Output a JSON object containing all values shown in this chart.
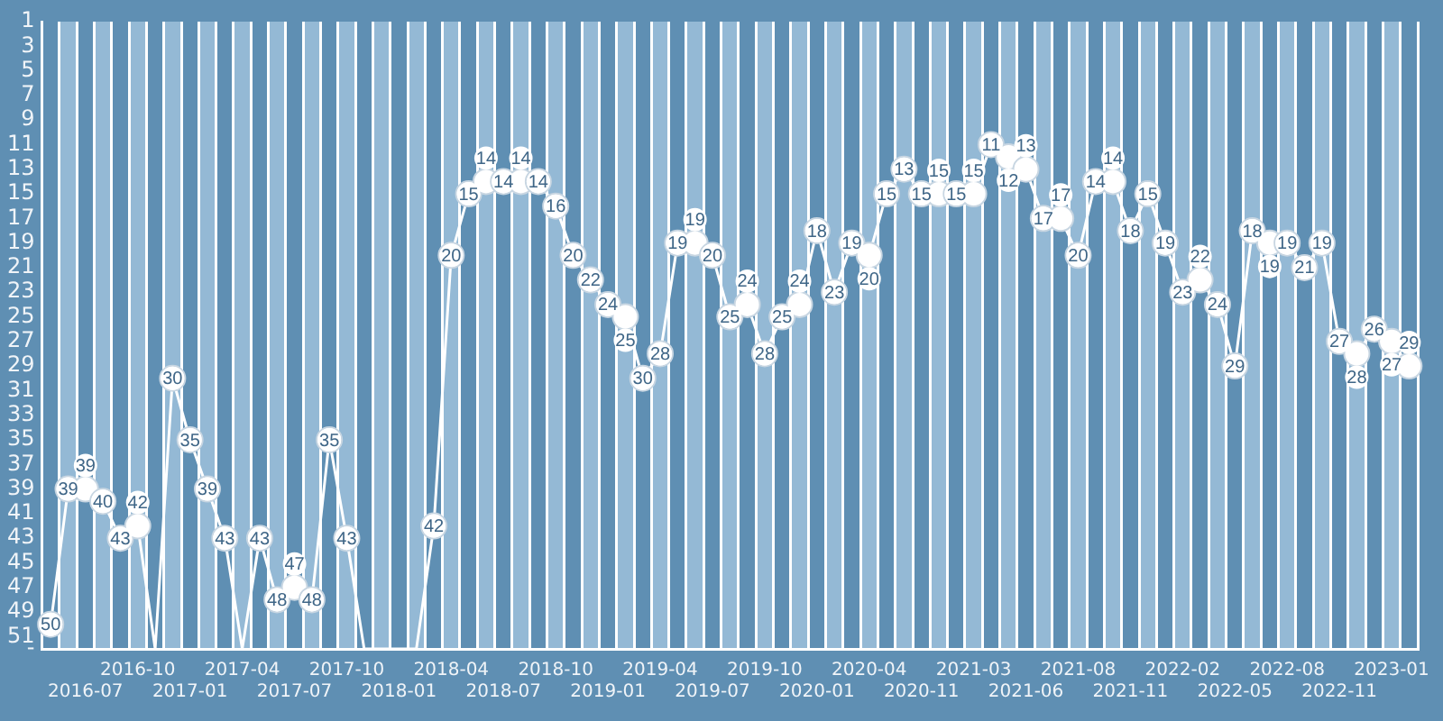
{
  "chart_data": {
    "type": "line",
    "categories": [
      null,
      null,
      "2016-07",
      null,
      null,
      "2016-10",
      null,
      null,
      "2017-01",
      null,
      null,
      "2017-04",
      null,
      null,
      "2017-07",
      null,
      null,
      "2017-10",
      null,
      null,
      "2018-01",
      null,
      null,
      "2018-04",
      null,
      null,
      "2018-07",
      null,
      null,
      "2018-10",
      null,
      null,
      "2019-01",
      null,
      null,
      "2019-04",
      null,
      null,
      "2019-07",
      null,
      null,
      "2019-10",
      null,
      null,
      "2020-01",
      null,
      null,
      "2020-04",
      null,
      null,
      "2020-11",
      null,
      null,
      "2021-03",
      null,
      null,
      "2021-06",
      null,
      null,
      "2021-08",
      null,
      null,
      "2021-11",
      null,
      null,
      "2022-02",
      null,
      null,
      "2022-05",
      null,
      null,
      "2022-08",
      null,
      null,
      "2022-11",
      null,
      null,
      "2023-01",
      null
    ],
    "series": [
      {
        "color": "#ffffff",
        "values": [
          50,
          39,
          39,
          40,
          43,
          42,
          52,
          30,
          35,
          39,
          43,
          52,
          43,
          48,
          47,
          48,
          35,
          43,
          52,
          52,
          52,
          52,
          42,
          20,
          15,
          14,
          14,
          14,
          14,
          16,
          20,
          22,
          24,
          25,
          30,
          28,
          19,
          19,
          20,
          25,
          24,
          28,
          25,
          24,
          18,
          23,
          19,
          20,
          15,
          13,
          15,
          15,
          15,
          15,
          11,
          12,
          13,
          17,
          17,
          20,
          14,
          14,
          18,
          15,
          19,
          23,
          22,
          24,
          29,
          18,
          19,
          19,
          21,
          19,
          27,
          28,
          26,
          27,
          29
        ],
        "value_labels": [
          "50",
          "39",
          "39",
          "40",
          "43",
          "42",
          null,
          "30",
          "35",
          "39",
          "43",
          null,
          "43",
          "48",
          "47",
          "48",
          "35",
          "43",
          null,
          null,
          null,
          null,
          "42",
          "20",
          "15",
          "14",
          "14",
          "14",
          "14",
          "16",
          "20",
          "22",
          "24",
          "25",
          "30",
          "28",
          "19",
          "19",
          "20",
          "25",
          "24",
          "28",
          "25",
          "24",
          "18",
          "23",
          "19",
          "20",
          "15",
          "13",
          "15",
          "15",
          "15",
          "15",
          "11",
          "12",
          "13",
          "17",
          "17",
          "20",
          "14",
          "14",
          "18",
          "15",
          "19",
          "23",
          "22",
          "24",
          "29",
          "18",
          "19",
          "19",
          "21",
          "19",
          "27",
          "28",
          "26",
          "27",
          "29"
        ]
      }
    ],
    "ylim": [
      52,
      1
    ],
    "yticks": [
      1,
      3,
      5,
      7,
      9,
      11,
      13,
      15,
      17,
      19,
      21,
      23,
      25,
      27,
      29,
      31,
      33,
      35,
      37,
      39,
      41,
      43,
      45,
      47,
      49,
      51,
      {
        "value": 52,
        "label": "-"
      }
    ],
    "grid": "x",
    "legend": false,
    "marker": "circle",
    "line_style": "solid"
  }
}
